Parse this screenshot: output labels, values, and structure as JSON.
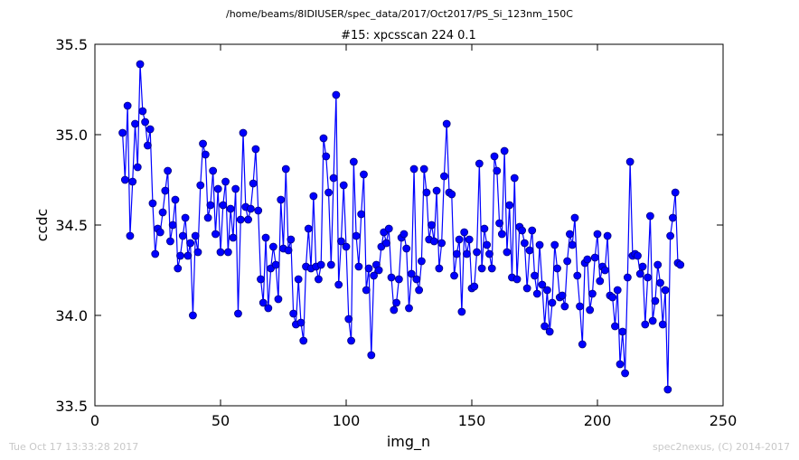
{
  "header": {
    "suptitle": "/home/beams/8IDIUSER/spec_data/2017/Oct2017/PS_Si_123nm_150C"
  },
  "footer": {
    "left": "Tue Oct 17 13:33:28 2017",
    "right": "spec2nexus, (C) 2014-2017"
  },
  "colors": {
    "series": "#0000ff",
    "marker_edge": "#000080"
  },
  "chart_data": {
    "type": "line",
    "title": "#15: xpcsscan 224 0.1",
    "xlabel": "img_n",
    "ylabel": "ccdc",
    "xlim": [
      0,
      250
    ],
    "ylim": [
      33.5,
      35.5
    ],
    "xticks": [
      "0",
      "50",
      "100",
      "150",
      "200",
      "250"
    ],
    "yticks": [
      "33.5",
      "34.0",
      "34.5",
      "35.0",
      "35.5"
    ],
    "grid": false,
    "markers": "circle",
    "x_start": 11,
    "series": [
      {
        "values": [
          35.01,
          34.75,
          35.16,
          34.44,
          34.74,
          35.06,
          34.82,
          35.39,
          35.13,
          35.07,
          34.94,
          35.03,
          34.62,
          34.34,
          34.48,
          34.46,
          34.57,
          34.69,
          34.8,
          34.41,
          34.5,
          34.64,
          34.26,
          34.33,
          34.44,
          34.54,
          34.33,
          34.4,
          34.0,
          34.44,
          34.35,
          34.72,
          34.95,
          34.89,
          34.54,
          34.61,
          34.8,
          34.45,
          34.7,
          34.35,
          34.61,
          34.74,
          34.35,
          34.59,
          34.43,
          34.7,
          34.01,
          34.53,
          35.01,
          34.6,
          34.53,
          34.59,
          34.73,
          34.92,
          34.58,
          34.2,
          34.07,
          34.43,
          34.04,
          34.26,
          34.38,
          34.28,
          34.09,
          34.64,
          34.37,
          34.81,
          34.36,
          34.42,
          34.01,
          33.95,
          34.2,
          33.96,
          33.86,
          34.27,
          34.48,
          34.26,
          34.66,
          34.27,
          34.2,
          34.28,
          34.98,
          34.88,
          34.68,
          34.28,
          34.76,
          35.22,
          34.17,
          34.41,
          34.72,
          34.38,
          33.98,
          33.86,
          34.85,
          34.44,
          34.27,
          34.56,
          34.78,
          34.14,
          34.26,
          33.78,
          34.22,
          34.28,
          34.25,
          34.38,
          34.46,
          34.4,
          34.48,
          34.21,
          34.03,
          34.07,
          34.2,
          34.43,
          34.45,
          34.37,
          34.04,
          34.23,
          34.81,
          34.2,
          34.14,
          34.3,
          34.81,
          34.68,
          34.42,
          34.5,
          34.41,
          34.69,
          34.26,
          34.4,
          34.77,
          35.06,
          34.68,
          34.67,
          34.22,
          34.34,
          34.42,
          34.02,
          34.46,
          34.34,
          34.42,
          34.15,
          34.16,
          34.35,
          34.84,
          34.26,
          34.48,
          34.39,
          34.34,
          34.26,
          34.88,
          34.8,
          34.51,
          34.45,
          34.91,
          34.35,
          34.61,
          34.21,
          34.76,
          34.2,
          34.49,
          34.47,
          34.4,
          34.15,
          34.36,
          34.47,
          34.22,
          34.12,
          34.39,
          34.17,
          33.94,
          34.14,
          33.91,
          34.07,
          34.39,
          34.26,
          34.1,
          34.11,
          34.05,
          34.3,
          34.45,
          34.39,
          34.54,
          34.22,
          34.05,
          33.84,
          34.29,
          34.31,
          34.03,
          34.12,
          34.32,
          34.45,
          34.19,
          34.27,
          34.25,
          34.44,
          34.11,
          34.1,
          33.94,
          34.14,
          33.73,
          33.91,
          33.68,
          34.21,
          34.85,
          34.33,
          34.34,
          34.33,
          34.23,
          34.27,
          33.95,
          34.21,
          34.55,
          33.97,
          34.08,
          34.28,
          34.18,
          33.95,
          34.14,
          33.59,
          34.44,
          34.54,
          34.68,
          34.29,
          34.28
        ]
      }
    ]
  }
}
